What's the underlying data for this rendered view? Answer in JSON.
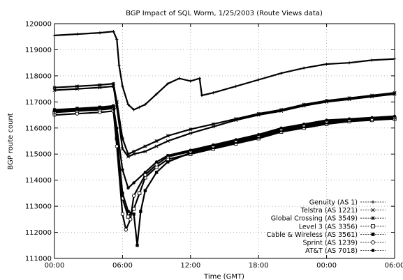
{
  "chart_data": {
    "type": "scatter",
    "title": "BGP Impact of SQL Worm, 1/25/2003 (Route Views data)",
    "xlabel": "Time (GMT)",
    "ylabel": "BGP route count",
    "x_unit": "hours",
    "xlim": [
      0,
      30
    ],
    "ylim": [
      111000,
      120000
    ],
    "x_tick_values": [
      0,
      6,
      12,
      18,
      24,
      30
    ],
    "x_tick_labels": [
      "00:00",
      "06:00",
      "12:00",
      "18:00",
      "00:00",
      "06:00"
    ],
    "y_tick_values": [
      111000,
      112000,
      113000,
      114000,
      115000,
      116000,
      117000,
      118000,
      119000,
      120000
    ],
    "y_tick_labels": [
      "111000",
      "112000",
      "113000",
      "114000",
      "115000",
      "116000",
      "117000",
      "118000",
      "119000",
      "120000"
    ],
    "grid": true,
    "legend_position": "bottom-right",
    "series": [
      {
        "name": "Genuity (AS 1)",
        "marker": "plus",
        "points": [
          [
            0,
            119550
          ],
          [
            2,
            119600
          ],
          [
            4,
            119650
          ],
          [
            5.2,
            119700
          ],
          [
            5.5,
            119400
          ],
          [
            5.7,
            118400
          ],
          [
            6,
            117600
          ],
          [
            6.5,
            116900
          ],
          [
            7,
            116700
          ],
          [
            7.5,
            116800
          ],
          [
            8,
            116900
          ],
          [
            9,
            117300
          ],
          [
            10,
            117700
          ],
          [
            11,
            117900
          ],
          [
            12,
            117800
          ],
          [
            12.8,
            117900
          ],
          [
            13,
            117250
          ],
          [
            14,
            117350
          ],
          [
            16,
            117600
          ],
          [
            18,
            117850
          ],
          [
            20,
            118100
          ],
          [
            22,
            118300
          ],
          [
            24,
            118450
          ],
          [
            26,
            118500
          ],
          [
            28,
            118600
          ],
          [
            30,
            118650
          ]
        ]
      },
      {
        "name": "Telstra (AS 1221)",
        "marker": "x",
        "points": [
          [
            0,
            117450
          ],
          [
            2,
            117500
          ],
          [
            4,
            117550
          ],
          [
            5.2,
            117600
          ],
          [
            5.5,
            116800
          ],
          [
            6,
            115200
          ],
          [
            6.5,
            114900
          ],
          [
            7,
            115000
          ],
          [
            8,
            115100
          ],
          [
            9,
            115300
          ],
          [
            10,
            115500
          ],
          [
            12,
            115800
          ],
          [
            14,
            116050
          ],
          [
            16,
            116300
          ],
          [
            18,
            116500
          ],
          [
            20,
            116650
          ],
          [
            22,
            116850
          ],
          [
            24,
            117000
          ],
          [
            26,
            117100
          ],
          [
            28,
            117200
          ],
          [
            30,
            117300
          ]
        ]
      },
      {
        "name": "Global Crossing (AS 3549)",
        "marker": "star",
        "points": [
          [
            0,
            117550
          ],
          [
            2,
            117600
          ],
          [
            4,
            117650
          ],
          [
            5.2,
            117700
          ],
          [
            5.5,
            117000
          ],
          [
            6,
            115600
          ],
          [
            6.5,
            115000
          ],
          [
            7,
            115100
          ],
          [
            8,
            115300
          ],
          [
            9,
            115500
          ],
          [
            10,
            115700
          ],
          [
            12,
            115950
          ],
          [
            14,
            116150
          ],
          [
            16,
            116350
          ],
          [
            18,
            116550
          ],
          [
            20,
            116700
          ],
          [
            22,
            116900
          ],
          [
            24,
            117050
          ],
          [
            26,
            117150
          ],
          [
            28,
            117250
          ],
          [
            30,
            117350
          ]
        ]
      },
      {
        "name": "Level 3 (AS 3356)",
        "marker": "square-open",
        "points": [
          [
            0,
            116600
          ],
          [
            2,
            116650
          ],
          [
            4,
            116700
          ],
          [
            5.2,
            116750
          ],
          [
            5.5,
            115600
          ],
          [
            6,
            113300
          ],
          [
            6.5,
            112600
          ],
          [
            7,
            112900
          ],
          [
            7.5,
            113500
          ],
          [
            8,
            114100
          ],
          [
            9,
            114500
          ],
          [
            10,
            114800
          ],
          [
            12,
            115000
          ],
          [
            14,
            115200
          ],
          [
            16,
            115400
          ],
          [
            18,
            115600
          ],
          [
            20,
            115850
          ],
          [
            22,
            116000
          ],
          [
            24,
            116150
          ],
          [
            26,
            116250
          ],
          [
            28,
            116300
          ],
          [
            30,
            116350
          ]
        ]
      },
      {
        "name": "Cable & Wireless (AS 3561)",
        "marker": "square-filled",
        "points": [
          [
            0,
            116700
          ],
          [
            2,
            116750
          ],
          [
            4,
            116800
          ],
          [
            5.2,
            116850
          ],
          [
            5.5,
            115700
          ],
          [
            6,
            113500
          ],
          [
            6.5,
            112800
          ],
          [
            7,
            112700
          ],
          [
            7.3,
            111500
          ],
          [
            7.6,
            112800
          ],
          [
            8,
            113600
          ],
          [
            9,
            114300
          ],
          [
            10,
            114700
          ],
          [
            12,
            115050
          ],
          [
            14,
            115250
          ],
          [
            16,
            115450
          ],
          [
            18,
            115650
          ],
          [
            20,
            115900
          ],
          [
            22,
            116050
          ],
          [
            24,
            116200
          ],
          [
            26,
            116300
          ],
          [
            28,
            116350
          ],
          [
            30,
            116400
          ]
        ]
      },
      {
        "name": "Sprint (AS 1239)",
        "marker": "circle-open",
        "points": [
          [
            0,
            116500
          ],
          [
            2,
            116550
          ],
          [
            4,
            116600
          ],
          [
            5.2,
            116650
          ],
          [
            5.5,
            115300
          ],
          [
            6,
            112700
          ],
          [
            6.3,
            112100
          ],
          [
            6.7,
            112500
          ],
          [
            7,
            113400
          ],
          [
            8,
            114200
          ],
          [
            9,
            114600
          ],
          [
            10,
            114900
          ],
          [
            12,
            115100
          ],
          [
            14,
            115300
          ],
          [
            16,
            115500
          ],
          [
            18,
            115700
          ],
          [
            20,
            115950
          ],
          [
            22,
            116100
          ],
          [
            24,
            116250
          ],
          [
            26,
            116300
          ],
          [
            28,
            116350
          ],
          [
            30,
            116400
          ]
        ]
      },
      {
        "name": "AT&T (AS 7018)",
        "marker": "circle-filled",
        "points": [
          [
            0,
            116650
          ],
          [
            2,
            116700
          ],
          [
            4,
            116750
          ],
          [
            5.2,
            116800
          ],
          [
            5.5,
            116000
          ],
          [
            6,
            114400
          ],
          [
            6.5,
            113700
          ],
          [
            7,
            113900
          ],
          [
            8,
            114300
          ],
          [
            9,
            114700
          ],
          [
            10,
            114950
          ],
          [
            12,
            115150
          ],
          [
            14,
            115350
          ],
          [
            16,
            115550
          ],
          [
            18,
            115750
          ],
          [
            20,
            116000
          ],
          [
            22,
            116150
          ],
          [
            24,
            116300
          ],
          [
            26,
            116350
          ],
          [
            28,
            116400
          ],
          [
            30,
            116450
          ]
        ]
      }
    ]
  }
}
